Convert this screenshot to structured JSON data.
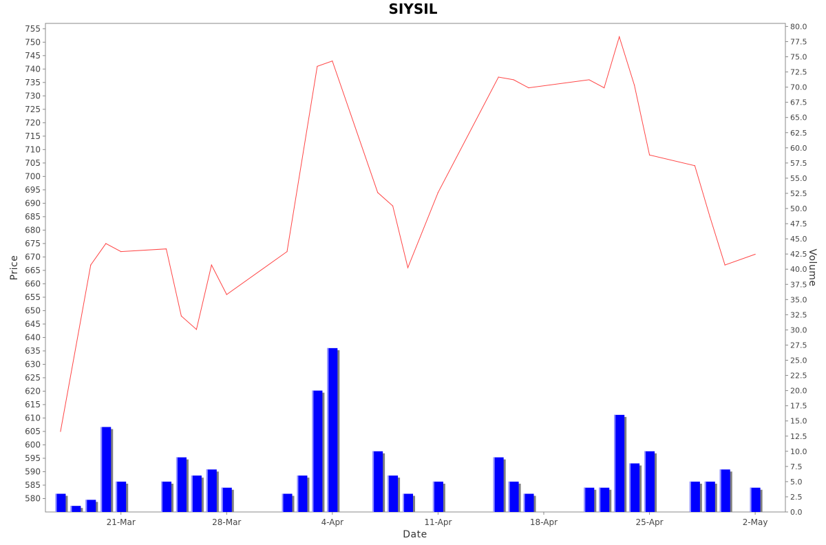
{
  "chart_data": {
    "type": "bar+line",
    "title": "SIYSIL",
    "xlabel": "Date",
    "ylabel_left": "Price",
    "ylabel_right": "Volume",
    "ylim_price": [
      575,
      757
    ],
    "ylim_volume": [
      0,
      80.5
    ],
    "price_ticks": [
      580,
      585,
      590,
      595,
      600,
      605,
      610,
      615,
      620,
      625,
      630,
      635,
      640,
      645,
      650,
      655,
      660,
      665,
      670,
      675,
      680,
      685,
      690,
      695,
      700,
      705,
      710,
      715,
      720,
      725,
      730,
      735,
      740,
      745,
      750,
      755
    ],
    "volume_ticks": [
      "0.0",
      "2.5",
      "5.0",
      "7.5",
      "10.0",
      "12.5",
      "15.0",
      "17.5",
      "20.0",
      "22.5",
      "25.0",
      "27.5",
      "30.0",
      "32.5",
      "35.0",
      "37.5",
      "40.0",
      "42.5",
      "45.0",
      "47.5",
      "50.0",
      "52.5",
      "55.0",
      "57.5",
      "60.0",
      "62.5",
      "65.0",
      "67.5",
      "70.0",
      "72.5",
      "75.0",
      "77.5",
      "80.0"
    ],
    "x_ticks": [
      {
        "label": "21-Mar",
        "day": 4
      },
      {
        "label": "28-Mar",
        "day": 11
      },
      {
        "label": "4-Apr",
        "day": 18
      },
      {
        "label": "11-Apr",
        "day": 25
      },
      {
        "label": "18-Apr",
        "day": 32
      },
      {
        "label": "25-Apr",
        "day": 39
      },
      {
        "label": "2-May",
        "day": 46
      }
    ],
    "x_domain": [
      -1,
      48
    ],
    "series": [
      {
        "name": "Price",
        "color": "#ff0000",
        "days": [
          0,
          2,
          3,
          4,
          7,
          8,
          9,
          10,
          11,
          15,
          17,
          18,
          21,
          22,
          23,
          25,
          29,
          30,
          31,
          35,
          36,
          37,
          38,
          39,
          42,
          43,
          44,
          46
        ],
        "values": [
          605,
          667,
          675,
          672,
          673,
          648,
          643,
          667,
          656,
          672,
          741,
          743,
          694,
          689,
          666,
          694,
          737,
          736,
          733,
          736,
          733,
          752,
          734,
          708,
          704,
          685,
          667,
          671
        ]
      },
      {
        "name": "Volume",
        "color": "#0000ff",
        "days": [
          0,
          1,
          2,
          3,
          4,
          7,
          8,
          9,
          10,
          11,
          15,
          16,
          17,
          18,
          21,
          22,
          23,
          25,
          29,
          30,
          31,
          35,
          36,
          37,
          38,
          39,
          42,
          43,
          44,
          46
        ],
        "values": [
          3,
          1,
          2,
          14,
          5,
          5,
          9,
          6,
          7,
          4,
          3,
          6,
          20,
          27,
          10,
          6,
          3,
          5,
          9,
          5,
          3,
          4,
          4,
          16,
          8,
          10,
          5,
          5,
          7,
          4
        ]
      }
    ],
    "colors": {
      "bar": "#0000ff",
      "bar_shadow": "#808080",
      "line": "#ff4444",
      "axis": "#888888"
    }
  }
}
